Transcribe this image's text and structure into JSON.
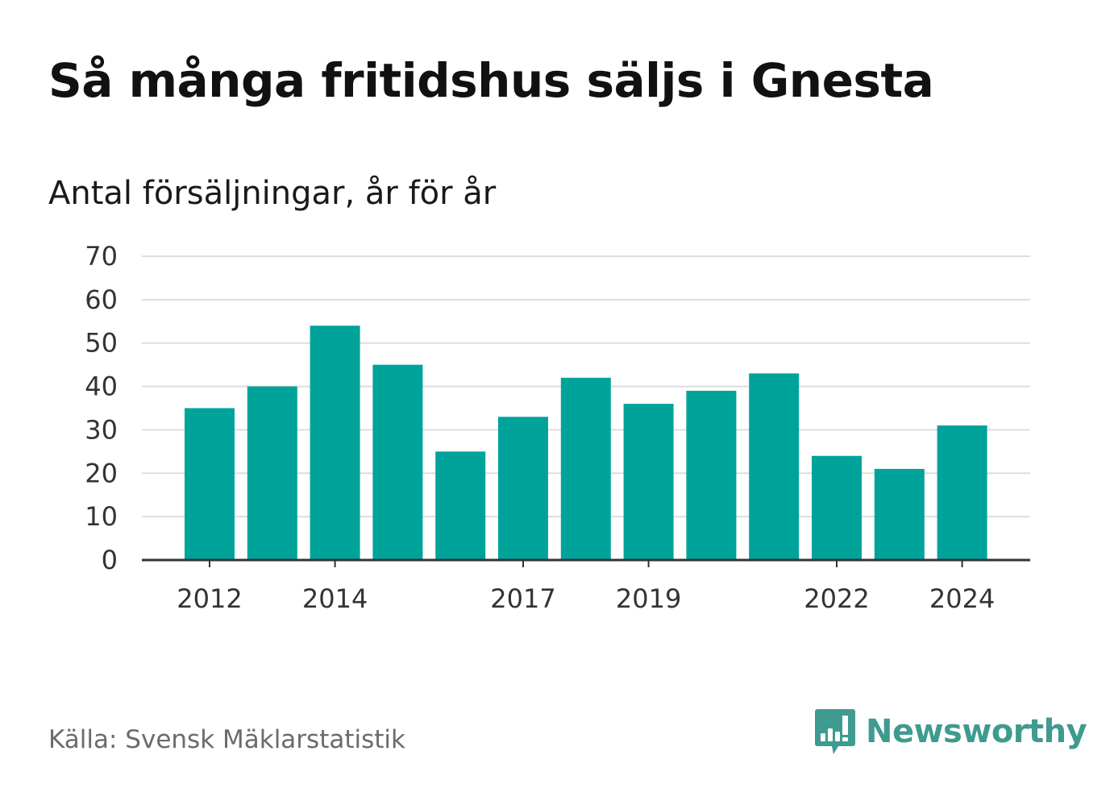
{
  "header": {
    "title": "Så många fritidshus säljs i Gnesta",
    "subtitle": "Antal försäljningar, år för år"
  },
  "footer": {
    "source": "Källa: Svensk Mäklarstatistik",
    "brand": "Newsworthy",
    "brand_icon": "chat-bar-chart-icon",
    "brand_color": "#3f9a90"
  },
  "chart_data": {
    "type": "bar",
    "title": "Så många fritidshus säljs i Gnesta",
    "subtitle": "Antal försäljningar, år för år",
    "categories": [
      2012,
      2013,
      2014,
      2015,
      2016,
      2017,
      2018,
      2019,
      2020,
      2021,
      2022,
      2023,
      2024
    ],
    "values": [
      35,
      40,
      54,
      45,
      25,
      33,
      42,
      36,
      39,
      43,
      24,
      21,
      31
    ],
    "x_tick_labels": [
      "2012",
      "2014",
      "2017",
      "2019",
      "2022",
      "2024"
    ],
    "y_ticks": [
      0,
      10,
      20,
      30,
      40,
      50,
      60,
      70
    ],
    "ylim": [
      0,
      70
    ],
    "grid": true,
    "bar_color": "#00a39a",
    "grid_color": "#dddddd",
    "axis_color": "#333333"
  }
}
